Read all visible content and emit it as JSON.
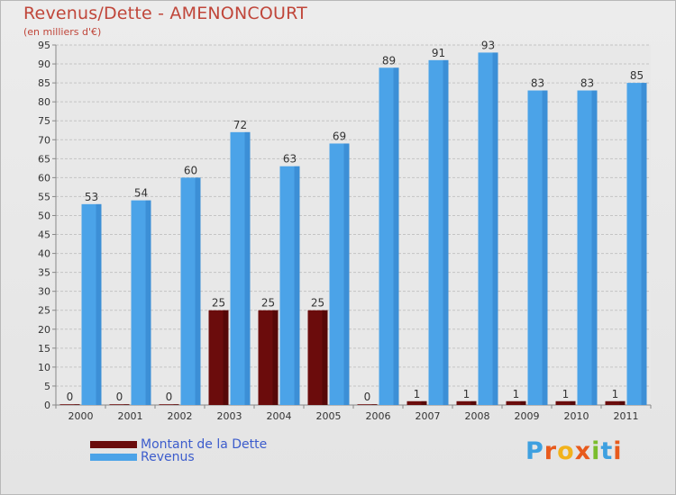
{
  "title": "Revenus/Dette - AMENONCOURT",
  "subtitle": "(en milliers d'€)",
  "colors": {
    "dette": "#6b0c0c",
    "revenus": "#4ba3e8",
    "title": "#c0463a",
    "legend_text": "#3c5ccc"
  },
  "legend": [
    {
      "label": "Montant de la Dette",
      "color": "#6b0c0c"
    },
    {
      "label": "Revenus",
      "color": "#4ba3e8"
    }
  ],
  "logo": {
    "letters": [
      "P",
      "r",
      "o",
      "x",
      "i",
      "t",
      "i"
    ],
    "colors": [
      "#3ea0e0",
      "#e85a1c",
      "#f2b21b",
      "#e85a1c",
      "#7abd2c",
      "#3ea0e0",
      "#e85a1c"
    ]
  },
  "chart_data": {
    "type": "bar",
    "categories": [
      "2000",
      "2001",
      "2002",
      "2003",
      "2004",
      "2005",
      "2006",
      "2007",
      "2008",
      "2009",
      "2010",
      "2011"
    ],
    "series": [
      {
        "name": "Montant de la Dette",
        "values": [
          0,
          0,
          0,
          25,
          25,
          25,
          0,
          1,
          1,
          1,
          1,
          1
        ]
      },
      {
        "name": "Revenus",
        "values": [
          53,
          54,
          60,
          72,
          63,
          69,
          89,
          91,
          93,
          83,
          83,
          85
        ]
      }
    ],
    "ylim": [
      0,
      95
    ],
    "yticks": [
      0,
      5,
      10,
      15,
      20,
      25,
      30,
      35,
      40,
      45,
      50,
      55,
      60,
      65,
      70,
      75,
      80,
      85,
      90,
      95
    ],
    "grid": true,
    "data_labels": true,
    "legend_position": "bottom-left"
  }
}
